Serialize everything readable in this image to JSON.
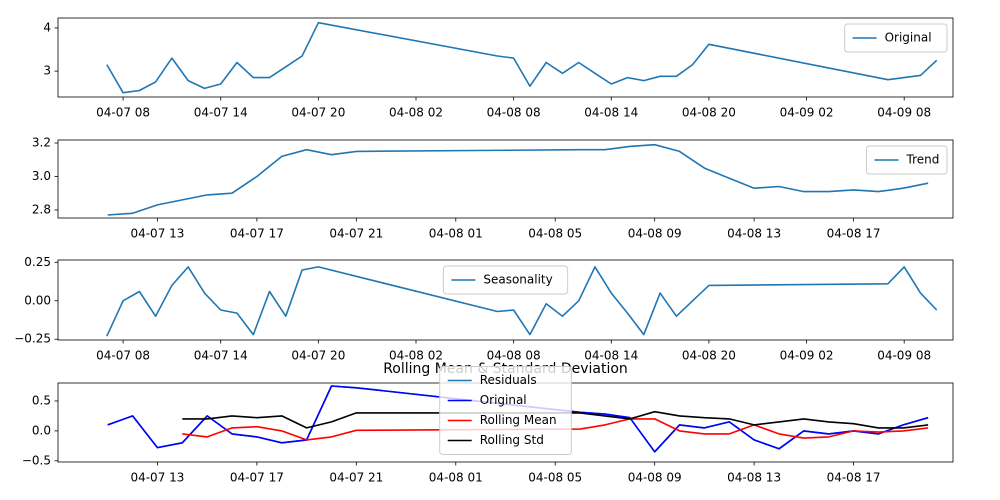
{
  "chart_data": [
    {
      "type": "line",
      "x": [
        "04-07 07",
        "04-07 08",
        "04-07 09",
        "04-07 10",
        "04-07 11",
        "04-07 12",
        "04-07 13",
        "04-07 14",
        "04-07 15",
        "04-07 16",
        "04-07 17",
        "04-07 18",
        "04-07 19",
        "04-07 20",
        "04-08 07",
        "04-08 08",
        "04-08 09",
        "04-08 10",
        "04-08 11",
        "04-08 12",
        "04-08 13",
        "04-08 14",
        "04-08 15",
        "04-08 16",
        "04-08 17",
        "04-08 18",
        "04-08 19",
        "04-08 20",
        "04-09 07",
        "04-09 08",
        "04-09 09",
        "04-09 10"
      ],
      "series": [
        {
          "name": "Original",
          "color": "#1f77b4",
          "values": [
            3.15,
            2.5,
            2.55,
            2.75,
            3.3,
            2.78,
            2.6,
            2.7,
            3.2,
            2.85,
            2.85,
            3.1,
            3.35,
            4.12,
            3.35,
            3.3,
            2.65,
            3.2,
            2.95,
            3.2,
            2.95,
            2.7,
            2.85,
            2.78,
            2.88,
            2.88,
            3.15,
            3.62,
            2.8,
            2.85,
            2.9,
            3.25
          ]
        }
      ],
      "xlim": [
        "04-07 04",
        "04-09 11"
      ],
      "xticks": [
        "04-07 08",
        "04-07 14",
        "04-07 20",
        "04-08 02",
        "04-08 08",
        "04-08 14",
        "04-08 20",
        "04-09 02",
        "04-09 08"
      ],
      "ylim": [
        2.4,
        4.23
      ],
      "yticks": [
        3,
        4
      ],
      "legend": "upper right"
    },
    {
      "type": "line",
      "x": [
        "04-07 11",
        "04-07 12",
        "04-07 13",
        "04-07 14",
        "04-07 15",
        "04-07 16",
        "04-07 17",
        "04-07 18",
        "04-07 19",
        "04-07 20",
        "04-07 21",
        "04-08 06",
        "04-08 07",
        "04-08 08",
        "04-08 09",
        "04-08 10",
        "04-08 11",
        "04-08 12",
        "04-08 13",
        "04-08 14",
        "04-08 15",
        "04-08 16",
        "04-08 17",
        "04-08 18",
        "04-08 19",
        "04-08 20"
      ],
      "series": [
        {
          "name": "Trend",
          "color": "#1f77b4",
          "values": [
            2.77,
            2.78,
            2.83,
            2.86,
            2.89,
            2.9,
            3.0,
            3.12,
            3.16,
            3.13,
            3.15,
            3.16,
            3.16,
            3.18,
            3.19,
            3.15,
            3.05,
            2.99,
            2.93,
            2.94,
            2.91,
            2.91,
            2.92,
            2.91,
            2.93,
            2.96
          ]
        }
      ],
      "xlim": [
        "04-07 09",
        "04-08 21"
      ],
      "xticks": [
        "04-07 13",
        "04-07 17",
        "04-07 21",
        "04-08 01",
        "04-08 05",
        "04-08 09",
        "04-08 13",
        "04-08 17"
      ],
      "ylim": [
        2.752,
        3.218
      ],
      "yticks": [
        2.8,
        {
          "value": 3.0,
          "label": "3.0"
        },
        3.2
      ],
      "legend": "upper right"
    },
    {
      "type": "line",
      "x": [
        "04-07 07",
        "04-07 08",
        "04-07 09",
        "04-07 10",
        "04-07 11",
        "04-07 12",
        "04-07 13",
        "04-07 14",
        "04-07 15",
        "04-07 16",
        "04-07 17",
        "04-07 18",
        "04-07 19",
        "04-07 20",
        "04-08 07",
        "04-08 08",
        "04-08 09",
        "04-08 10",
        "04-08 11",
        "04-08 12",
        "04-08 13",
        "04-08 14",
        "04-08 15",
        "04-08 16",
        "04-08 17",
        "04-08 18",
        "04-08 19",
        "04-08 20",
        "04-09 07",
        "04-09 08",
        "04-09 09",
        "04-09 10"
      ],
      "series": [
        {
          "name": "Seasonality",
          "color": "#1f77b4",
          "values": [
            -0.23,
            0.0,
            0.06,
            -0.1,
            0.1,
            0.22,
            0.05,
            -0.06,
            -0.08,
            -0.22,
            0.06,
            -0.1,
            0.2,
            0.22,
            -0.07,
            -0.06,
            -0.22,
            -0.02,
            -0.1,
            0.0,
            0.22,
            0.05,
            -0.08,
            -0.22,
            0.05,
            -0.1,
            0.0,
            0.1,
            0.11,
            0.22,
            0.05,
            -0.06
          ]
        }
      ],
      "xlim": [
        "04-07 04",
        "04-09 11"
      ],
      "xticks": [
        "04-07 08",
        "04-07 14",
        "04-07 20",
        "04-08 02",
        "04-08 08",
        "04-08 14",
        "04-08 20",
        "04-09 02",
        "04-09 08"
      ],
      "ylim": [
        -0.255,
        0.265
      ],
      "yticks": [
        {
          "value": -0.25,
          "label": "−0.25"
        },
        {
          "value": 0,
          "label": "0.00"
        },
        0.25
      ],
      "legend": "upper center"
    },
    {
      "type": "line",
      "title": "Rolling Mean & Standard Deviation",
      "x": [
        "04-07 11",
        "04-07 12",
        "04-07 13",
        "04-07 14",
        "04-07 15",
        "04-07 16",
        "04-07 17",
        "04-07 18",
        "04-07 19",
        "04-07 20",
        "04-07 21",
        "04-08 06",
        "04-08 07",
        "04-08 08",
        "04-08 09",
        "04-08 10",
        "04-08 11",
        "04-08 12",
        "04-08 13",
        "04-08 14",
        "04-08 15",
        "04-08 16",
        "04-08 17",
        "04-08 18",
        "04-08 19",
        "04-08 20"
      ],
      "series": [
        {
          "name": "Residuals",
          "color": "#1f77b4",
          "values": [
            0.1,
            0.25,
            -0.28,
            -0.2,
            0.25,
            -0.05,
            -0.1,
            -0.2,
            -0.15,
            0.75,
            0.72,
            0.31,
            0.28,
            0.22,
            -0.35,
            0.1,
            0.05,
            0.15,
            -0.15,
            -0.3,
            0.0,
            -0.05,
            0.0,
            -0.05,
            0.1,
            0.22
          ]
        },
        {
          "name": "Original",
          "color": "#0000ff",
          "values": [
            0.1,
            0.25,
            -0.28,
            -0.2,
            0.25,
            -0.05,
            -0.1,
            -0.2,
            -0.15,
            0.75,
            0.72,
            0.31,
            0.28,
            0.22,
            -0.35,
            0.1,
            0.05,
            0.15,
            -0.15,
            -0.3,
            0.0,
            -0.05,
            0.0,
            -0.05,
            0.1,
            0.22
          ]
        },
        {
          "name": "Rolling Mean",
          "color": "#ff0000",
          "values": [
            null,
            null,
            null,
            -0.05,
            -0.1,
            0.05,
            0.07,
            0.0,
            -0.15,
            -0.1,
            0.01,
            0.03,
            0.1,
            0.2,
            0.2,
            0.0,
            -0.05,
            -0.05,
            0.1,
            -0.05,
            -0.12,
            -0.1,
            0.0,
            -0.02,
            0.0,
            0.05
          ]
        },
        {
          "name": "Rolling Std",
          "color": "#000000",
          "values": [
            null,
            null,
            null,
            0.2,
            0.2,
            0.25,
            0.22,
            0.25,
            0.05,
            0.15,
            0.3,
            0.3,
            0.25,
            0.2,
            0.32,
            0.25,
            0.22,
            0.2,
            0.1,
            0.15,
            0.2,
            0.15,
            0.12,
            0.05,
            0.05,
            0.1
          ]
        }
      ],
      "xlim": [
        "04-07 09",
        "04-08 21"
      ],
      "xticks": [
        "04-07 13",
        "04-07 17",
        "04-07 21",
        "04-08 01",
        "04-08 05",
        "04-08 09",
        "04-08 13",
        "04-08 17"
      ],
      "ylim": [
        -0.52,
        0.8
      ],
      "yticks": [
        {
          "value": -0.5,
          "label": "−0.5"
        },
        {
          "value": 0,
          "label": "0.0"
        },
        0.5
      ],
      "legend": "center"
    }
  ]
}
